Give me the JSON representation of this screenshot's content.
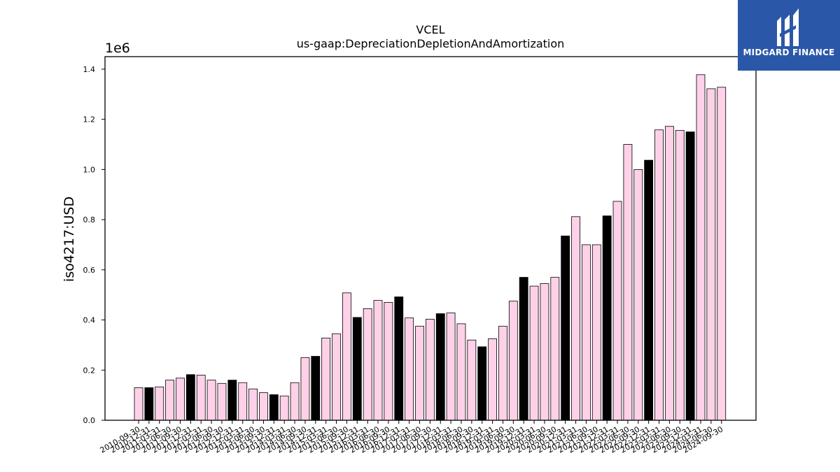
{
  "chart_data": {
    "type": "bar",
    "title": "VCEL",
    "subtitle": "us-gaap:DepreciationDepletionAndAmortization",
    "ylabel": "iso4217:USD",
    "xlabel": "",
    "y_offset_label": "1e6",
    "ylim": [
      0,
      1450000
    ],
    "yticks": [
      0,
      200000,
      400000,
      600000,
      800000,
      1000000,
      1200000,
      1400000
    ],
    "ytick_labels": [
      "0.0",
      "0.2",
      "0.4",
      "0.6",
      "0.8",
      "1.0",
      "1.2",
      "1.4"
    ],
    "grid": false,
    "colors": {
      "bar": "#ffd1e8",
      "highlight": "#000000",
      "edge": "#000000"
    },
    "categories": [
      "2010-09-30",
      "2010-12-31",
      "2011-03-31",
      "2011-06-30",
      "2011-09-30",
      "2011-12-31",
      "2012-03-31",
      "2012-06-30",
      "2012-09-30",
      "2012-12-31",
      "2013-03-31",
      "2013-06-30",
      "2013-09-30",
      "2013-12-31",
      "2014-03-31",
      "2014-06-30",
      "2014-09-30",
      "2014-12-31",
      "2015-03-31",
      "2015-06-30",
      "2015-09-30",
      "2015-12-31",
      "2016-03-31",
      "2016-06-30",
      "2016-09-30",
      "2016-12-31",
      "2017-03-31",
      "2017-06-30",
      "2017-09-30",
      "2017-12-31",
      "2018-03-31",
      "2018-06-30",
      "2018-09-30",
      "2018-12-31",
      "2019-03-31",
      "2019-06-30",
      "2019-09-30",
      "2019-12-31",
      "2020-03-31",
      "2020-06-30",
      "2020-09-30",
      "2020-12-31",
      "2021-03-31",
      "2021-06-30",
      "2021-09-30",
      "2021-12-31",
      "2022-03-31",
      "2022-06-30",
      "2022-09-30",
      "2022-12-31",
      "2023-03-31",
      "2023-06-30",
      "2023-09-30",
      "2023-12-31",
      "2024-03-31",
      "2024-06-30",
      "2024-09-30"
    ],
    "values": [
      130000,
      130000,
      133000,
      160000,
      168000,
      182000,
      180000,
      160000,
      147000,
      160000,
      150000,
      125000,
      110000,
      102000,
      97000,
      150000,
      250000,
      255000,
      328000,
      345000,
      508000,
      410000,
      445000,
      478000,
      470000,
      492000,
      408000,
      375000,
      403000,
      425000,
      428000,
      385000,
      320000,
      293000,
      325000,
      375000,
      475000,
      570000,
      535000,
      545000,
      570000,
      735000,
      812000,
      700000,
      700000,
      815000,
      873000,
      1100000,
      1000000,
      1037000,
      1158000,
      1172000,
      1156000,
      1150000,
      1378000,
      1322000,
      1328000
    ],
    "highlight": [
      false,
      true,
      false,
      false,
      false,
      true,
      false,
      false,
      false,
      true,
      false,
      false,
      false,
      true,
      false,
      false,
      false,
      true,
      false,
      false,
      false,
      true,
      false,
      false,
      false,
      true,
      false,
      false,
      false,
      true,
      false,
      false,
      false,
      true,
      false,
      false,
      false,
      true,
      false,
      false,
      false,
      true,
      false,
      false,
      false,
      true,
      false,
      false,
      false,
      true,
      false,
      false,
      false,
      true,
      false,
      false,
      false
    ]
  },
  "logo": {
    "text": "MIDGARD FINANCE",
    "color": "#2b57a8"
  }
}
